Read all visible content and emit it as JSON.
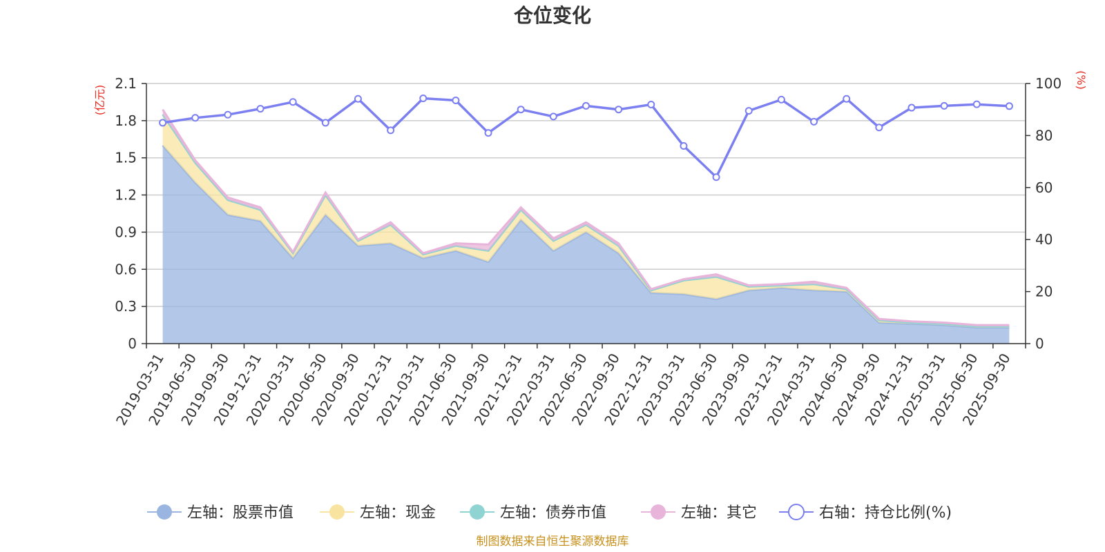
{
  "chart_data": {
    "type": "area",
    "title": "仓位变化",
    "y_left_unit": "(亿元)",
    "y_right_unit": "(%)",
    "y_left_ticks": [
      "0",
      "0.3",
      "0.6",
      "0.9",
      "1.2",
      "1.5",
      "1.8",
      "2.1"
    ],
    "y_right_ticks": [
      "0",
      "20",
      "40",
      "60",
      "80",
      "100"
    ],
    "ylim_left": [
      0,
      2.1
    ],
    "ylim_right": [
      0,
      100
    ],
    "categories": [
      "2019-03-31",
      "2019-06-30",
      "2019-09-30",
      "2019-12-31",
      "2020-03-31",
      "2020-06-30",
      "2020-09-30",
      "2020-12-31",
      "2021-03-31",
      "2021-06-30",
      "2021-09-30",
      "2021-12-31",
      "2022-03-31",
      "2022-06-30",
      "2022-09-30",
      "2022-12-31",
      "2023-03-31",
      "2023-06-30",
      "2023-09-30",
      "2023-12-31",
      "2024-03-31",
      "2024-06-30",
      "2024-09-30",
      "2024-12-31",
      "2025-03-31",
      "2025-06-30",
      "2025-09-30"
    ],
    "series": [
      {
        "name": "左轴：股票市值",
        "axis": "left",
        "stack": true,
        "color": "#9ab5e0",
        "values": [
          1.6,
          1.3,
          1.04,
          0.99,
          0.69,
          1.04,
          0.79,
          0.81,
          0.69,
          0.75,
          0.66,
          1.0,
          0.75,
          0.9,
          0.73,
          0.41,
          0.4,
          0.36,
          0.43,
          0.45,
          0.43,
          0.42,
          0.17,
          0.16,
          0.15,
          0.13,
          0.13
        ]
      },
      {
        "name": "左轴：现金",
        "axis": "left",
        "stack": true,
        "color": "#f8e4a0",
        "values": [
          0.25,
          0.16,
          0.12,
          0.09,
          0.04,
          0.16,
          0.04,
          0.15,
          0.03,
          0.04,
          0.09,
          0.08,
          0.08,
          0.06,
          0.06,
          0.02,
          0.11,
          0.18,
          0.03,
          0.02,
          0.05,
          0.02,
          0.02,
          0.01,
          0.01,
          0.01,
          0.01
        ]
      },
      {
        "name": "左轴：债券市值",
        "axis": "left",
        "stack": true,
        "color": "#8fd3d3",
        "values": [
          0,
          0,
          0,
          0,
          0,
          0,
          0,
          0,
          0,
          0,
          0,
          0,
          0,
          0,
          0,
          0,
          0,
          0,
          0,
          0,
          0,
          0,
          0,
          0,
          0,
          0,
          0
        ]
      },
      {
        "name": "左轴：其它",
        "axis": "left",
        "stack": true,
        "color": "#e8b4da",
        "values": [
          0.04,
          0.02,
          0.02,
          0.02,
          0.01,
          0.02,
          0.01,
          0.02,
          0.01,
          0.02,
          0.05,
          0.02,
          0.02,
          0.02,
          0.02,
          0.01,
          0.01,
          0.02,
          0.01,
          0.01,
          0.02,
          0.01,
          0.01,
          0.01,
          0.01,
          0.01,
          0.01
        ]
      },
      {
        "name": "右轴：持仓比例(%)",
        "axis": "right",
        "type": "line",
        "color": "#7b7ff0",
        "values": [
          84.9,
          86.8,
          88.0,
          90.3,
          92.9,
          84.9,
          94.1,
          82.0,
          94.3,
          93.5,
          81.0,
          90.0,
          87.3,
          91.4,
          90.0,
          91.9,
          76.0,
          64.0,
          89.5,
          93.8,
          85.3,
          94.1,
          83.1,
          90.7,
          91.4,
          92.0,
          91.3
        ]
      }
    ],
    "legend_position": "bottom",
    "grid": true
  },
  "footer": {
    "source": "制图数据来自恒生聚源数据库"
  }
}
